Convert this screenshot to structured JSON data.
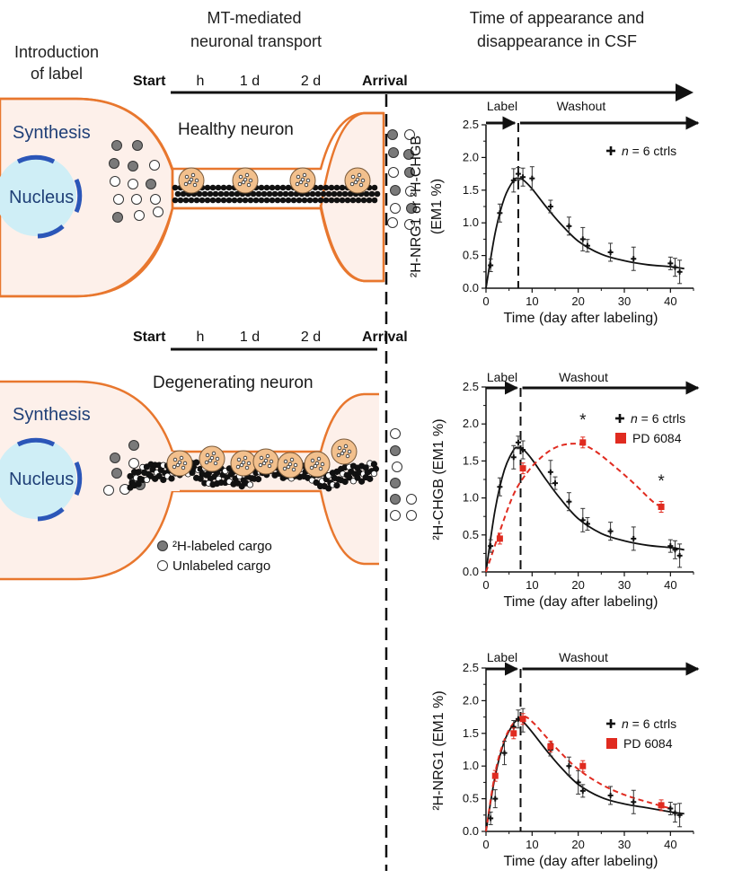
{
  "headers": {
    "introduction": [
      "Introduction",
      "of label"
    ],
    "transport": [
      "MT-mediated",
      "neuronal transport"
    ],
    "csf": [
      "Time of appearance and",
      "disappearance in CSF"
    ]
  },
  "timeline": {
    "start": "Start",
    "ticks": [
      "h",
      "1 d",
      "2 d"
    ],
    "arrival": "Arrival"
  },
  "neurons": [
    {
      "name": "Healthy neuron",
      "synthesis": "Synthesis",
      "nucleus": "Nucleus"
    },
    {
      "name": "Degenerating neuron",
      "synthesis": "Synthesis",
      "nucleus": "Nucleus"
    }
  ],
  "legend": {
    "labeled": "²H-labeled cargo",
    "unlabeled": "Unlabeled cargo"
  },
  "colors": {
    "neuron_outline": "#e8772e",
    "neuron_fill": "#fdf0ea",
    "nucleus_fill": "#cfeef6",
    "nucleus_edge": "#2b56b8",
    "cargo_vesicle": "#f2c08d",
    "ctrl_series": "#111111",
    "pd_series": "#e02b20"
  },
  "chart_data": [
    {
      "type": "scatter",
      "title": "",
      "phase_labels": [
        "Label",
        "Washout"
      ],
      "xlabel": "Time (day after labeling)",
      "ylabel": [
        "²H-NRG1 or ²H-CHGB",
        "(EM1 %)"
      ],
      "xlim": [
        0,
        45
      ],
      "ylim": [
        0,
        2.5
      ],
      "xticks": [
        "0",
        "10",
        "20",
        "30",
        "40"
      ],
      "yticks": [
        "0.0",
        "0.5",
        "1.0",
        "1.5",
        "2.0",
        "2.5"
      ],
      "label_end_day": 7,
      "legend_position": "top-right",
      "series": [
        {
          "name": "n = 6 ctrls",
          "legend_n": "n",
          "legend_rest": " = 6 ctrls",
          "marker": "plus",
          "x": [
            1,
            3,
            6,
            7,
            8,
            10,
            14,
            18,
            21,
            22,
            27,
            32,
            40,
            41,
            42
          ],
          "y": [
            0.35,
            1.15,
            1.65,
            1.75,
            1.7,
            1.68,
            1.25,
            0.95,
            0.75,
            0.65,
            0.55,
            0.45,
            0.38,
            0.32,
            0.25
          ]
        }
      ],
      "fits": [
        {
          "series": "n = 6 ctrls",
          "x": [
            0,
            2,
            4,
            6,
            7,
            8,
            10,
            13,
            16,
            20,
            25,
            30,
            35,
            40,
            43
          ],
          "y": [
            0,
            0.85,
            1.38,
            1.65,
            1.68,
            1.66,
            1.52,
            1.25,
            1.0,
            0.72,
            0.52,
            0.42,
            0.36,
            0.33,
            0.3
          ],
          "dashed": false
        }
      ]
    },
    {
      "type": "scatter",
      "title": "",
      "phase_labels": [
        "Label",
        "Washout"
      ],
      "xlabel": "Time (day after labeling)",
      "ylabel": [
        "²H-CHGB (EM1 %)"
      ],
      "xlim": [
        0,
        45
      ],
      "ylim": [
        0,
        2.5
      ],
      "xticks": [
        "0",
        "10",
        "20",
        "30",
        "40"
      ],
      "yticks": [
        "0.0",
        "0.5",
        "1.0",
        "1.5",
        "2.0",
        "2.5"
      ],
      "label_end_day": 7.5,
      "legend_position": "top-right",
      "significance": [
        {
          "x": 21,
          "y": 1.98,
          "text": "*"
        },
        {
          "x": 38,
          "y": 1.15,
          "text": "*"
        }
      ],
      "series": [
        {
          "name": "n = 6 ctrls",
          "legend_n": "n",
          "legend_rest": " = 6 ctrls",
          "marker": "plus",
          "x": [
            1,
            3,
            6,
            7,
            8,
            14,
            15,
            18,
            21,
            22,
            27,
            32,
            40,
            41,
            42
          ],
          "y": [
            0.35,
            1.15,
            1.55,
            1.75,
            1.65,
            1.35,
            1.2,
            0.95,
            0.7,
            0.65,
            0.55,
            0.45,
            0.35,
            0.3,
            0.22
          ]
        },
        {
          "name": "PD 6084",
          "marker": "square",
          "x": [
            3,
            8,
            21,
            38
          ],
          "y": [
            0.45,
            1.4,
            1.75,
            0.88
          ]
        }
      ],
      "fits": [
        {
          "series": "n = 6 ctrls",
          "x": [
            0,
            2,
            4,
            6,
            7,
            8,
            10,
            13,
            16,
            20,
            25,
            30,
            35,
            40,
            43
          ],
          "y": [
            0,
            0.85,
            1.38,
            1.65,
            1.68,
            1.66,
            1.52,
            1.25,
            1.0,
            0.72,
            0.52,
            0.42,
            0.36,
            0.33,
            0.3
          ],
          "dashed": false
        },
        {
          "series": "PD 6084",
          "x": [
            0,
            3,
            6,
            9,
            12,
            15,
            18,
            21,
            24,
            28,
            32,
            36,
            38
          ],
          "y": [
            0,
            0.55,
            1.05,
            1.35,
            1.55,
            1.68,
            1.73,
            1.72,
            1.62,
            1.42,
            1.2,
            0.96,
            0.88
          ],
          "dashed": true
        }
      ]
    },
    {
      "type": "scatter",
      "title": "",
      "phase_labels": [
        "Label",
        "Washout"
      ],
      "xlabel": "Time (day after labeling)",
      "ylabel": [
        "²H-NRG1 (EM1 %)"
      ],
      "xlim": [
        0,
        45
      ],
      "ylim": [
        0,
        2.5
      ],
      "xticks": [
        "0",
        "10",
        "20",
        "30",
        "40"
      ],
      "yticks": [
        "0.0",
        "0.5",
        "1.0",
        "1.5",
        "2.0",
        "2.5"
      ],
      "label_end_day": 7.5,
      "legend_position": "right",
      "series": [
        {
          "name": "n = 6 ctrls",
          "legend_n": "n",
          "legend_rest": " = 6 ctrls",
          "marker": "plus",
          "x": [
            1,
            2,
            4,
            6,
            7,
            8,
            14,
            18,
            20,
            21,
            27,
            32,
            40,
            41,
            42
          ],
          "y": [
            0.2,
            0.5,
            1.2,
            1.6,
            1.72,
            1.7,
            1.25,
            1.0,
            0.75,
            0.62,
            0.55,
            0.45,
            0.35,
            0.28,
            0.25
          ]
        },
        {
          "name": "PD 6084",
          "marker": "square",
          "x": [
            2,
            6,
            8,
            14,
            21,
            38
          ],
          "y": [
            0.85,
            1.5,
            1.72,
            1.3,
            1.0,
            0.4
          ]
        }
      ],
      "fits": [
        {
          "series": "n = 6 ctrls",
          "x": [
            0,
            2,
            4,
            6,
            7,
            8,
            10,
            13,
            16,
            20,
            25,
            30,
            35,
            40,
            43
          ],
          "y": [
            0,
            0.85,
            1.38,
            1.65,
            1.7,
            1.68,
            1.52,
            1.25,
            1.0,
            0.72,
            0.52,
            0.42,
            0.36,
            0.3,
            0.27
          ],
          "dashed": false
        },
        {
          "series": "PD 6084",
          "x": [
            0,
            2,
            4,
            6,
            8,
            10,
            13,
            16,
            20,
            25,
            30,
            35,
            40
          ],
          "y": [
            0,
            0.9,
            1.4,
            1.66,
            1.76,
            1.68,
            1.45,
            1.22,
            0.95,
            0.72,
            0.56,
            0.45,
            0.35
          ],
          "dashed": true
        }
      ]
    }
  ]
}
